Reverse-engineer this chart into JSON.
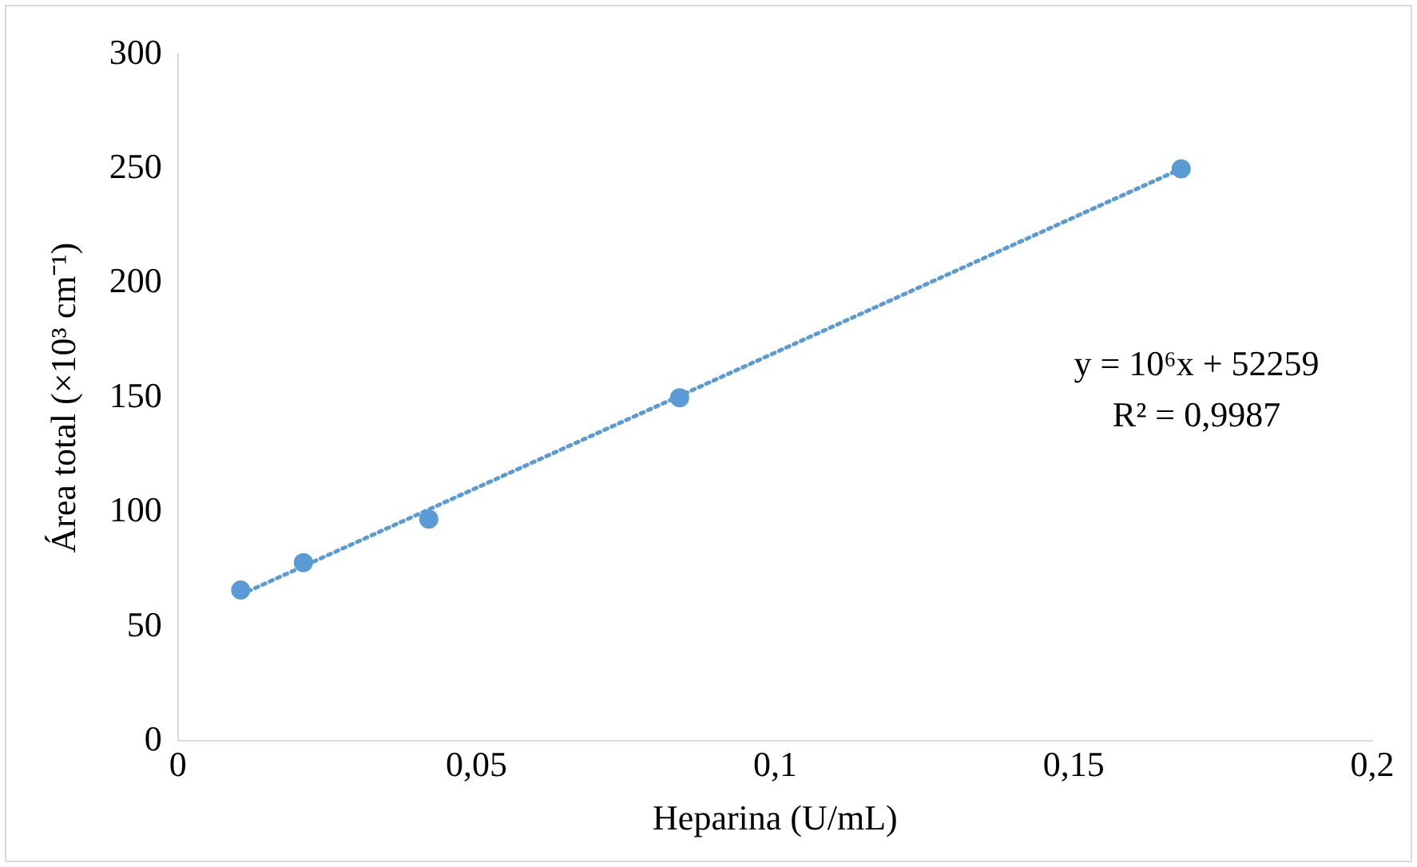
{
  "chart_data": {
    "type": "scatter",
    "xlabel": "Heparina (U/mL)",
    "ylabel": "Área total (×10³ cm⁻¹)",
    "series": [
      {
        "type": "scatter",
        "color": "#5b9bd5",
        "marker": "circle",
        "x": [
          0.0105,
          0.021,
          0.042,
          0.084,
          0.168
        ],
        "values": [
          66,
          78,
          97,
          150,
          250
        ]
      },
      {
        "type": "line",
        "color": "#5b9bd5",
        "marker": "none",
        "line_style": "dotted",
        "x": [
          0.0105,
          0.168
        ],
        "values": [
          64,
          250
        ]
      }
    ],
    "xlim": [
      0,
      0.2
    ],
    "xticks": [
      0,
      {
        "value": 0.05,
        "label": "0,05"
      },
      {
        "value": 0.1,
        "label": "0,1"
      },
      {
        "value": 0.15,
        "label": "0,15"
      },
      {
        "value": 0.2,
        "label": "0,2"
      }
    ],
    "ylim": [
      0,
      300
    ],
    "yticks": [
      0,
      50,
      100,
      150,
      200,
      250,
      300
    ],
    "grid": false,
    "legend": false,
    "annotations": [
      "y = 10⁶x + 52259",
      "R² = 0,9987"
    ]
  }
}
